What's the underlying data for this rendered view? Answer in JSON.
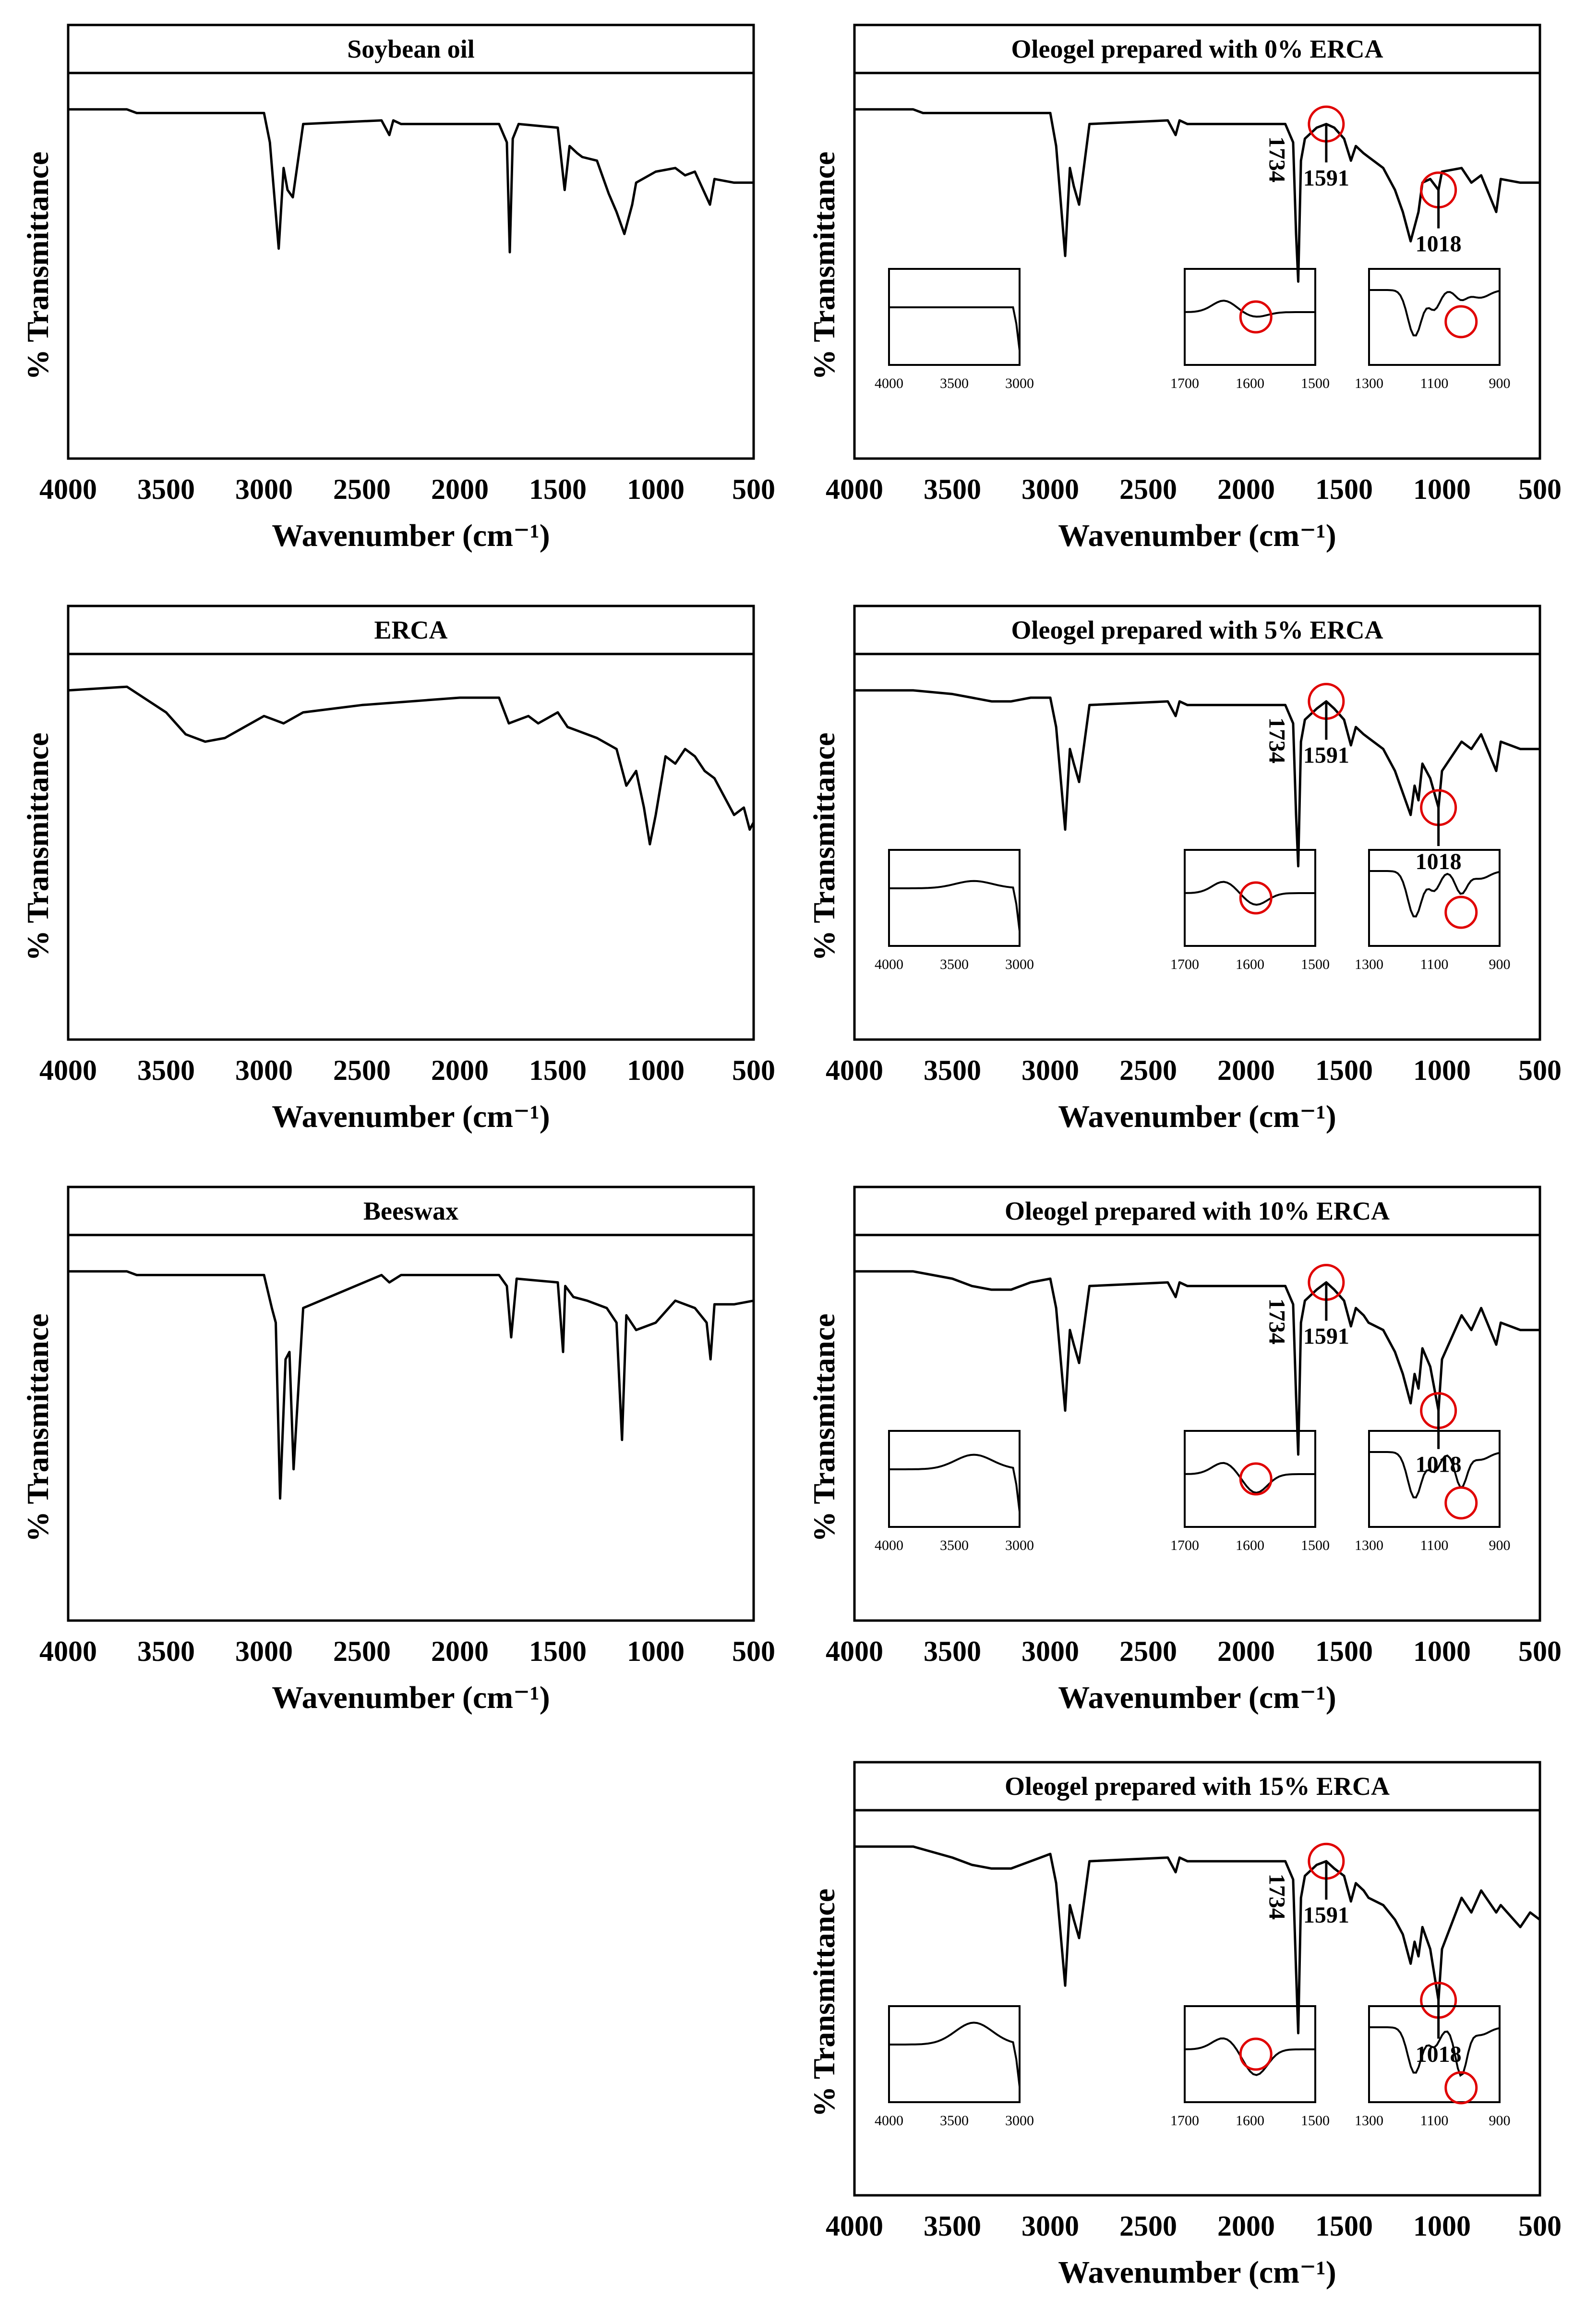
{
  "chart_data": [
    {
      "type": "line",
      "panel": "left-row-1",
      "title": "Soybean oil",
      "xlabel": "Wavenumber (cm⁻¹)",
      "ylabel": "% Transmittance",
      "xlim": [
        4000,
        500
      ],
      "ylim": [
        0,
        100
      ],
      "xticks": [
        "4000",
        "3500",
        "3000",
        "2500",
        "2000",
        "1500",
        "1000",
        "500"
      ],
      "series": [
        {
          "name": "Soybean oil",
          "x": [
            4000,
            3700,
            3650,
            3000,
            2970,
            2925,
            2900,
            2880,
            2853,
            2800,
            2400,
            2360,
            2340,
            2300,
            1800,
            1760,
            1745,
            1730,
            1700,
            1500,
            1465,
            1440,
            1400,
            1375,
            1300,
            1240,
            1200,
            1160,
            1120,
            1100,
            1000,
            900,
            850,
            800,
            723,
            700,
            600,
            500
          ],
          "y": [
            94,
            94,
            93,
            93,
            85,
            56,
            78,
            72,
            70,
            90,
            91,
            87,
            91,
            90,
            90,
            85,
            55,
            86,
            90,
            89,
            72,
            84,
            82,
            81,
            80,
            71,
            66,
            60,
            68,
            74,
            77,
            78,
            76,
            77,
            68,
            75,
            74,
            74
          ]
        }
      ]
    },
    {
      "type": "line",
      "panel": "left-row-2",
      "title": "ERCA",
      "xlabel": "Wavenumber (cm⁻¹)",
      "ylabel": "% Transmittance",
      "xlim": [
        4000,
        500
      ],
      "ylim": [
        0,
        100
      ],
      "xticks": [
        "4000",
        "3500",
        "3000",
        "2500",
        "2000",
        "1500",
        "1000",
        "500"
      ],
      "series": [
        {
          "name": "ERCA",
          "x": [
            4000,
            3700,
            3500,
            3400,
            3300,
            3200,
            3100,
            3000,
            2950,
            2900,
            2800,
            2500,
            2000,
            1800,
            1750,
            1700,
            1650,
            1600,
            1500,
            1450,
            1400,
            1300,
            1200,
            1150,
            1100,
            1060,
            1030,
            1000,
            950,
            900,
            850,
            800,
            750,
            700,
            600,
            550,
            520,
            500
          ],
          "y": [
            94,
            95,
            88,
            82,
            80,
            81,
            84,
            87,
            86,
            85,
            88,
            90,
            92,
            92,
            85,
            86,
            87,
            85,
            88,
            84,
            83,
            81,
            78,
            68,
            72,
            62,
            52,
            60,
            76,
            74,
            78,
            76,
            72,
            70,
            60,
            62,
            56,
            58
          ]
        }
      ]
    },
    {
      "type": "line",
      "panel": "left-row-3",
      "title": "Beeswax",
      "xlabel": "Wavenumber (cm⁻¹)",
      "ylabel": "% Transmittance",
      "xlim": [
        4000,
        500
      ],
      "ylim": [
        0,
        100
      ],
      "xticks": [
        "4000",
        "3500",
        "3000",
        "2500",
        "2000",
        "1500",
        "1000",
        "500"
      ],
      "series": [
        {
          "name": "Beeswax",
          "x": [
            4000,
            3700,
            3650,
            3000,
            2960,
            2940,
            2918,
            2890,
            2870,
            2849,
            2800,
            2400,
            2360,
            2300,
            1800,
            1760,
            1738,
            1710,
            1500,
            1473,
            1462,
            1420,
            1350,
            1250,
            1200,
            1172,
            1150,
            1100,
            1000,
            900,
            800,
            740,
            720,
            700,
            600,
            500
          ],
          "y": [
            94,
            94,
            93,
            93,
            84,
            80,
            32,
            70,
            72,
            40,
            84,
            93,
            91,
            93,
            93,
            90,
            76,
            92,
            91,
            72,
            90,
            87,
            86,
            84,
            80,
            48,
            82,
            78,
            80,
            86,
            84,
            80,
            70,
            85,
            85,
            86
          ]
        }
      ]
    },
    {
      "type": "line",
      "panel": "right-row-1",
      "title": "Oleogel prepared with 0% ERCA",
      "xlabel": "Wavenumber (cm⁻¹)",
      "ylabel": "% Transmittance",
      "xlim": [
        4000,
        500
      ],
      "ylim": [
        0,
        100
      ],
      "xticks": [
        "4000",
        "3500",
        "3000",
        "2500",
        "2000",
        "1500",
        "1000",
        "500"
      ],
      "annotations": [
        "1734",
        "1591",
        "1018"
      ],
      "series": [
        {
          "name": "Oleogel 0% ERCA",
          "x": [
            4000,
            3700,
            3650,
            3000,
            2970,
            2924,
            2900,
            2880,
            2853,
            2800,
            2400,
            2360,
            2340,
            2300,
            1800,
            1760,
            1745,
            1734,
            1720,
            1700,
            1640,
            1591,
            1550,
            1500,
            1465,
            1440,
            1400,
            1375,
            1300,
            1240,
            1200,
            1160,
            1120,
            1100,
            1060,
            1018,
            1000,
            900,
            850,
            800,
            723,
            700,
            600,
            500
          ],
          "y": [
            94,
            94,
            93,
            93,
            84,
            54,
            78,
            73,
            68,
            90,
            91,
            87,
            91,
            90,
            90,
            85,
            60,
            47,
            80,
            86,
            89,
            90,
            89,
            86,
            80,
            84,
            82,
            81,
            78,
            72,
            66,
            58,
            66,
            74,
            75,
            72,
            77,
            78,
            74,
            76,
            66,
            75,
            74,
            74
          ]
        }
      ],
      "insets": [
        {
          "xlim": [
            4000,
            3000
          ],
          "xticks": [
            "4000",
            "3500",
            "3000"
          ]
        },
        {
          "xlim": [
            1700,
            1500
          ],
          "xticks": [
            "1700",
            "1600",
            "1500"
          ]
        },
        {
          "xlim": [
            1300,
            900
          ],
          "xticks": [
            "1300",
            "1100",
            "900"
          ]
        }
      ]
    },
    {
      "type": "line",
      "panel": "right-row-2",
      "title": "Oleogel prepared with 5% ERCA",
      "xlabel": "Wavenumber (cm⁻¹)",
      "ylabel": "% Transmittance",
      "xlim": [
        4000,
        500
      ],
      "ylim": [
        0,
        100
      ],
      "xticks": [
        "4000",
        "3500",
        "3000",
        "2500",
        "2000",
        "1500",
        "1000",
        "500"
      ],
      "annotations": [
        "1734",
        "1591",
        "1018"
      ],
      "series": [
        {
          "name": "Oleogel 5% ERCA",
          "x": [
            4000,
            3700,
            3500,
            3400,
            3300,
            3200,
            3100,
            3000,
            2970,
            2924,
            2900,
            2880,
            2853,
            2800,
            2400,
            2360,
            2340,
            2300,
            1800,
            1760,
            1745,
            1734,
            1720,
            1700,
            1640,
            1591,
            1550,
            1500,
            1465,
            1440,
            1400,
            1375,
            1300,
            1240,
            1200,
            1160,
            1140,
            1120,
            1100,
            1060,
            1018,
            1000,
            900,
            850,
            800,
            723,
            700,
            600,
            500
          ],
          "y": [
            94,
            94,
            93,
            92,
            91,
            91,
            92,
            92,
            84,
            56,
            78,
            74,
            69,
            90,
            91,
            87,
            91,
            90,
            90,
            85,
            60,
            46,
            80,
            86,
            89,
            91,
            89,
            86,
            79,
            84,
            82,
            81,
            78,
            72,
            66,
            60,
            68,
            64,
            74,
            70,
            62,
            72,
            80,
            78,
            82,
            72,
            80,
            78,
            78
          ]
        }
      ],
      "insets": [
        {
          "xlim": [
            4000,
            3000
          ],
          "xticks": [
            "4000",
            "3500",
            "3000"
          ]
        },
        {
          "xlim": [
            1700,
            1500
          ],
          "xticks": [
            "1700",
            "1600",
            "1500"
          ]
        },
        {
          "xlim": [
            1300,
            900
          ],
          "xticks": [
            "1300",
            "1100",
            "900"
          ]
        }
      ]
    },
    {
      "type": "line",
      "panel": "right-row-3",
      "title": "Oleogel prepared with 10% ERCA",
      "xlabel": "Wavenumber (cm⁻¹)",
      "ylabel": "% Transmittance",
      "xlim": [
        4000,
        500
      ],
      "ylim": [
        0,
        100
      ],
      "xticks": [
        "4000",
        "3500",
        "3000",
        "2500",
        "2000",
        "1500",
        "1000",
        "500"
      ],
      "annotations": [
        "1734",
        "1591",
        "1018"
      ],
      "series": [
        {
          "name": "Oleogel 10% ERCA",
          "x": [
            4000,
            3700,
            3500,
            3400,
            3300,
            3200,
            3100,
            3000,
            2970,
            2924,
            2900,
            2880,
            2853,
            2800,
            2400,
            2360,
            2340,
            2300,
            1800,
            1760,
            1745,
            1734,
            1720,
            1700,
            1640,
            1591,
            1550,
            1500,
            1465,
            1440,
            1400,
            1375,
            1300,
            1240,
            1200,
            1160,
            1140,
            1120,
            1100,
            1060,
            1018,
            1000,
            900,
            850,
            800,
            723,
            700,
            600,
            500
          ],
          "y": [
            94,
            94,
            92,
            90,
            89,
            89,
            91,
            92,
            84,
            56,
            78,
            74,
            69,
            90,
            91,
            87,
            91,
            90,
            90,
            85,
            60,
            44,
            80,
            86,
            89,
            91,
            89,
            86,
            79,
            84,
            82,
            80,
            78,
            72,
            66,
            58,
            66,
            62,
            73,
            68,
            56,
            70,
            82,
            78,
            84,
            74,
            80,
            78,
            78
          ]
        }
      ],
      "insets": [
        {
          "xlim": [
            4000,
            3000
          ],
          "xticks": [
            "4000",
            "3500",
            "3000"
          ]
        },
        {
          "xlim": [
            1700,
            1500
          ],
          "xticks": [
            "1700",
            "1600",
            "1500"
          ]
        },
        {
          "xlim": [
            1300,
            900
          ],
          "xticks": [
            "1300",
            "1100",
            "900"
          ]
        }
      ]
    },
    {
      "type": "line",
      "panel": "right-row-4",
      "title": "Oleogel prepared with 15% ERCA",
      "xlabel": "Wavenumber (cm⁻¹)",
      "ylabel": "% Transmittance",
      "xlim": [
        4000,
        500
      ],
      "ylim": [
        0,
        100
      ],
      "xticks": [
        "4000",
        "3500",
        "3000",
        "2500",
        "2000",
        "1500",
        "1000",
        "500"
      ],
      "annotations": [
        "1734",
        "1591",
        "1018"
      ],
      "series": [
        {
          "name": "Oleogel 15% ERCA",
          "x": [
            4000,
            3700,
            3500,
            3400,
            3300,
            3200,
            3100,
            3000,
            2970,
            2924,
            2900,
            2880,
            2853,
            2800,
            2400,
            2360,
            2340,
            2300,
            1800,
            1760,
            1745,
            1734,
            1720,
            1700,
            1640,
            1591,
            1550,
            1500,
            1465,
            1440,
            1400,
            1375,
            1300,
            1240,
            1200,
            1160,
            1140,
            1120,
            1100,
            1060,
            1018,
            1000,
            900,
            850,
            800,
            723,
            700,
            600,
            550,
            500
          ],
          "y": [
            94,
            94,
            91,
            89,
            88,
            88,
            90,
            92,
            84,
            56,
            78,
            74,
            69,
            90,
            91,
            87,
            91,
            90,
            90,
            85,
            60,
            43,
            80,
            86,
            89,
            90,
            88,
            86,
            79,
            84,
            82,
            80,
            78,
            74,
            70,
            62,
            68,
            64,
            72,
            66,
            52,
            66,
            80,
            76,
            82,
            76,
            78,
            72,
            76,
            74
          ]
        }
      ],
      "insets": [
        {
          "xlim": [
            4000,
            3000
          ],
          "xticks": [
            "4000",
            "3500",
            "3000"
          ]
        },
        {
          "xlim": [
            1700,
            1500
          ],
          "xticks": [
            "1700",
            "1600",
            "1500"
          ]
        },
        {
          "xlim": [
            1300,
            900
          ],
          "xticks": [
            "1300",
            "1100",
            "900"
          ]
        }
      ]
    }
  ]
}
